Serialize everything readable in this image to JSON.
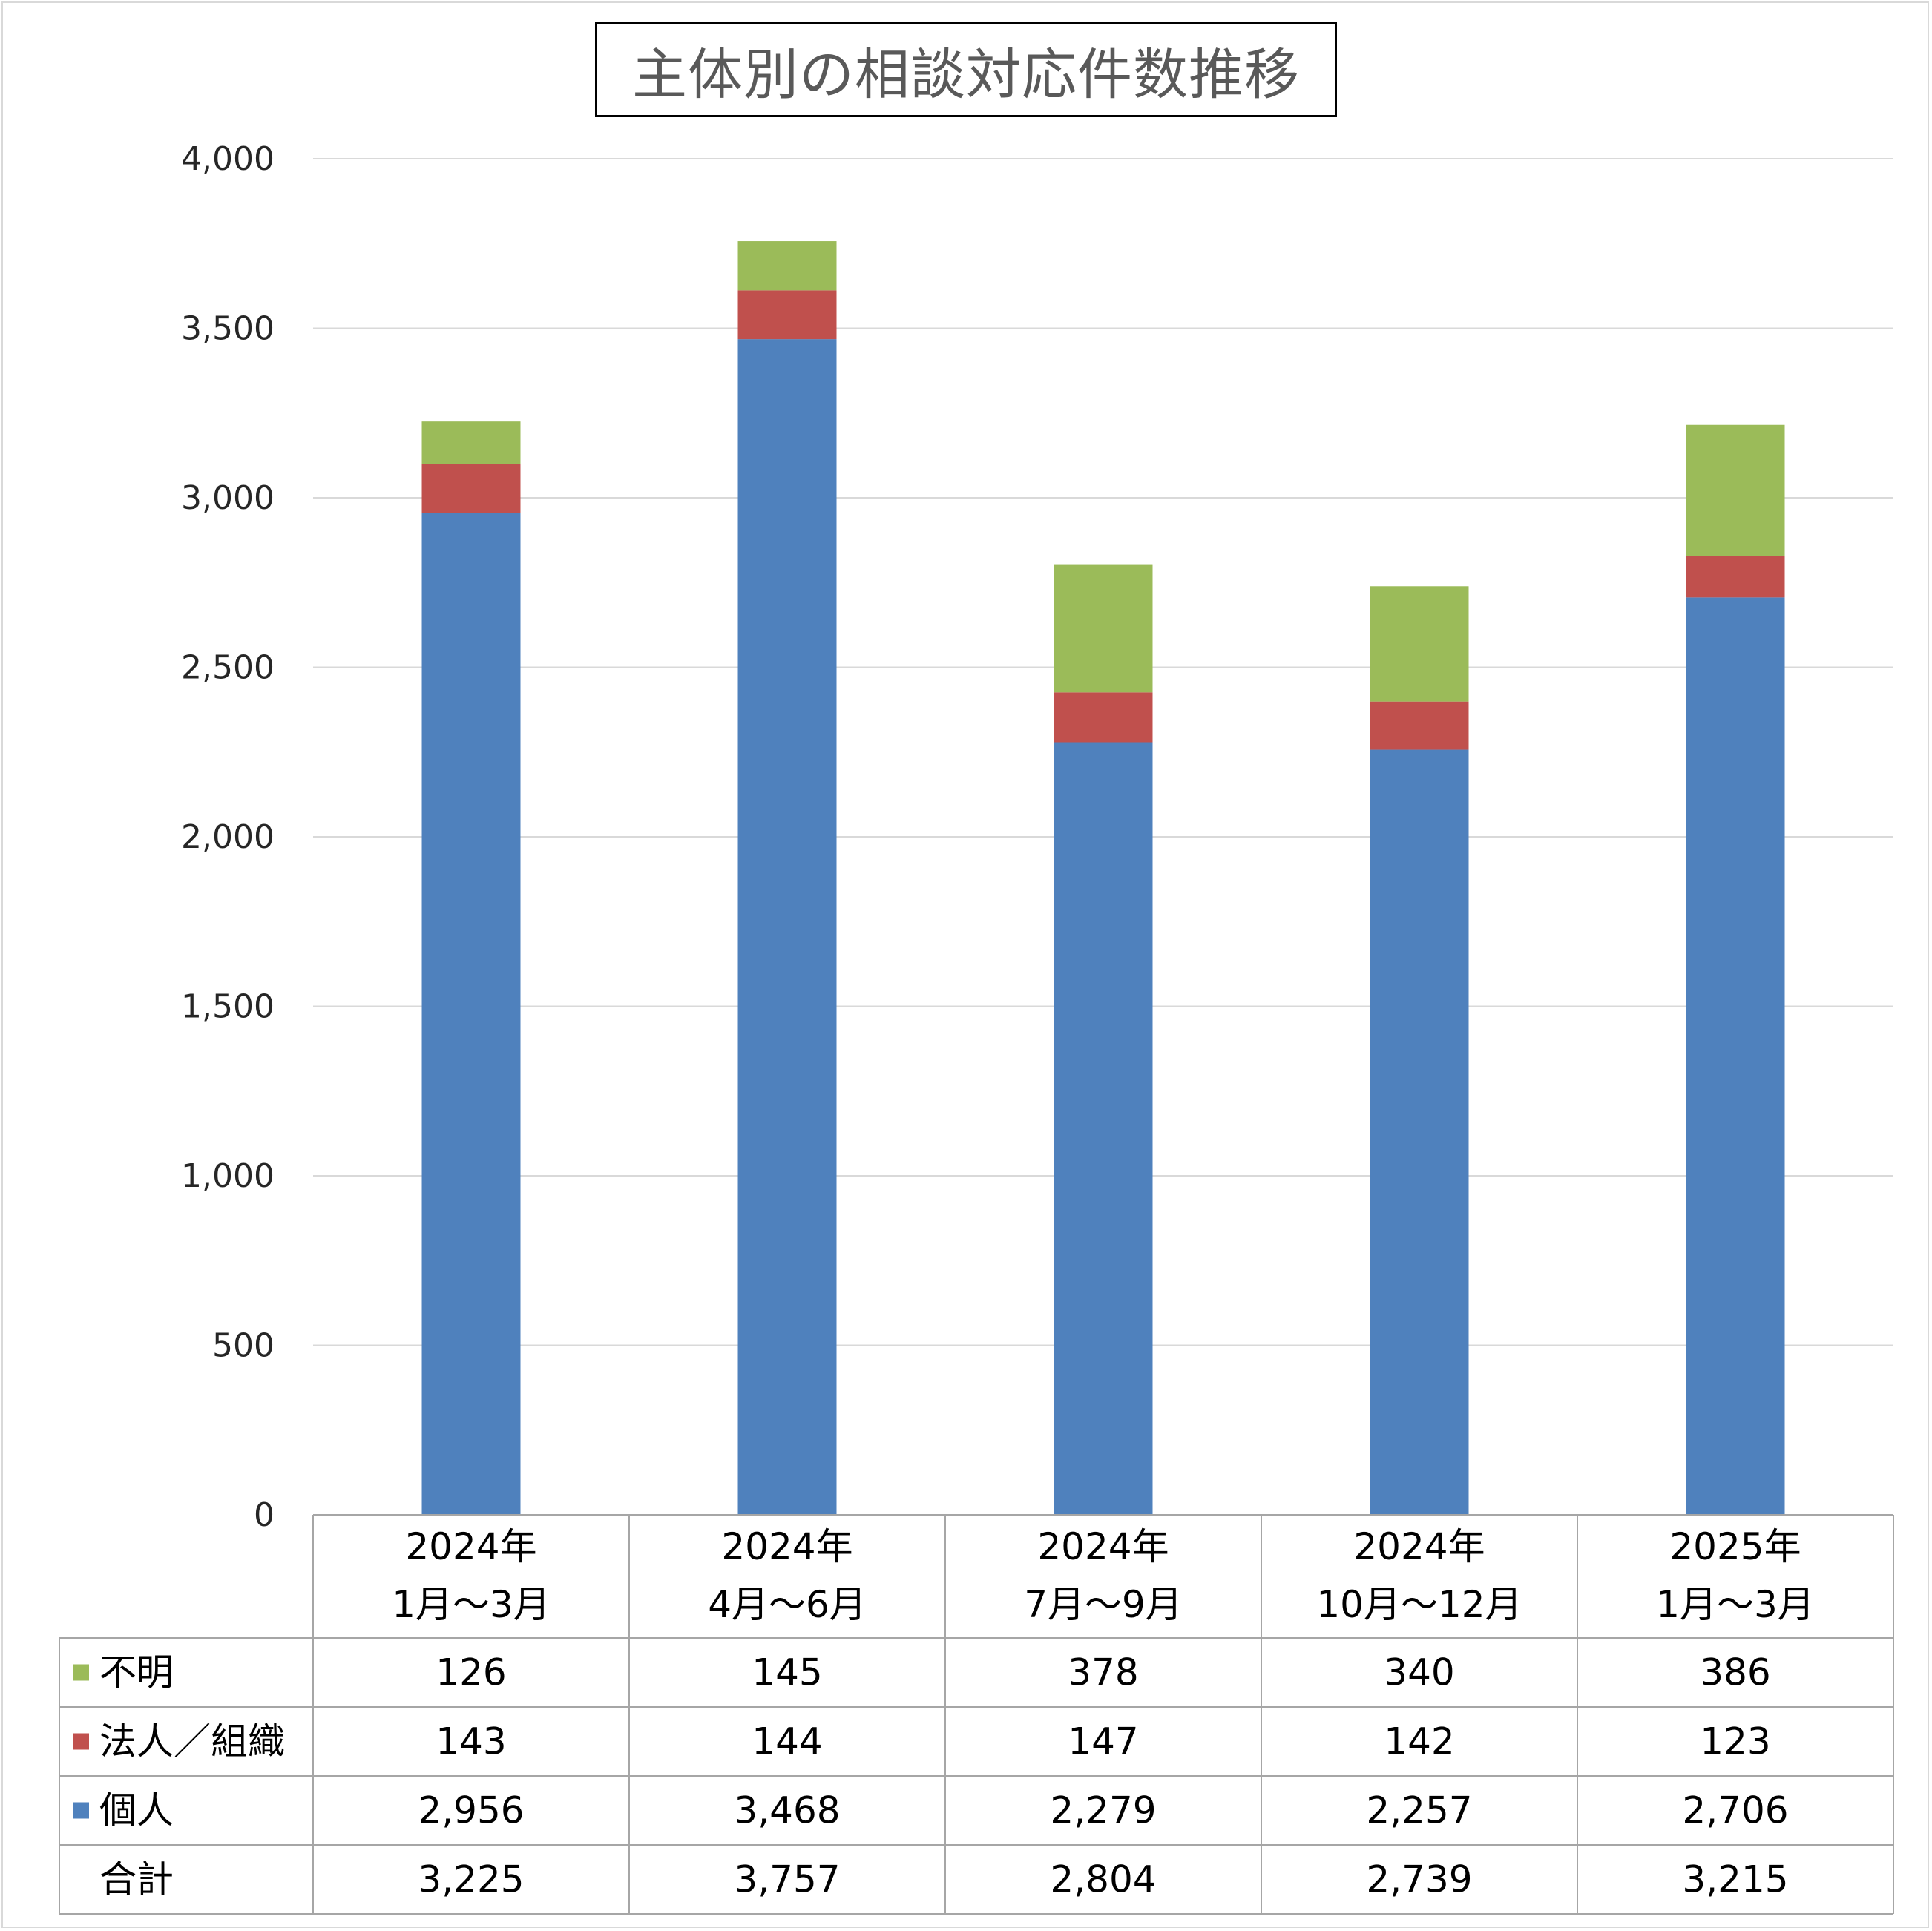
{
  "chart_data": {
    "type": "bar",
    "stacked": true,
    "title": "主体別の相談対応件数推移",
    "categories": [
      [
        "2024年",
        "1月～3月"
      ],
      [
        "2024年",
        "4月～6月"
      ],
      [
        "2024年",
        "7月～9月"
      ],
      [
        "2024年",
        "10月～12月"
      ],
      [
        "2025年",
        "1月～3月"
      ]
    ],
    "series": [
      {
        "name": "個人",
        "color": "#4f81bd",
        "values": [
          2956,
          3468,
          2279,
          2257,
          2706
        ],
        "labels": [
          "2,956",
          "3,468",
          "2,279",
          "2,257",
          "2,706"
        ]
      },
      {
        "name": "法人／組織",
        "color": "#c0504d",
        "values": [
          143,
          144,
          147,
          142,
          123
        ],
        "labels": [
          "143",
          "144",
          "147",
          "142",
          "123"
        ]
      },
      {
        "name": "不明",
        "color": "#9bbb59",
        "values": [
          126,
          145,
          378,
          340,
          386
        ],
        "labels": [
          "126",
          "145",
          "378",
          "340",
          "386"
        ]
      }
    ],
    "totals": {
      "name": "合計",
      "values": [
        3225,
        3757,
        2804,
        2739,
        3215
      ],
      "labels": [
        "3,225",
        "3,757",
        "2,804",
        "2,739",
        "3,215"
      ]
    },
    "table_row_order": [
      "不明",
      "法人／組織",
      "個人",
      "合計"
    ],
    "ylim": [
      0,
      4000
    ],
    "yticks": [
      0,
      500,
      1000,
      1500,
      2000,
      2500,
      3000,
      3500,
      4000
    ],
    "ytick_labels": [
      "0",
      "500",
      "1,000",
      "1,500",
      "2,000",
      "2,500",
      "3,000",
      "3,500",
      "4,000"
    ],
    "grid": true,
    "legend": "data-table",
    "xlabel": "",
    "ylabel": ""
  }
}
